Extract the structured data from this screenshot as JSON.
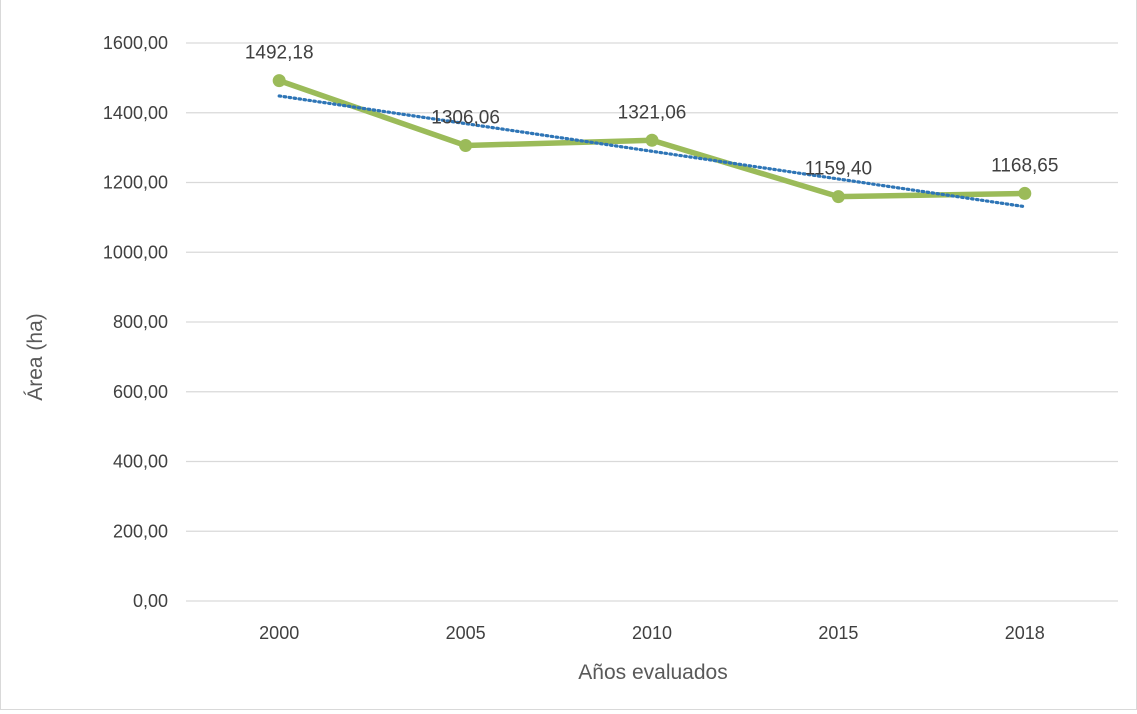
{
  "chart_data": {
    "type": "line",
    "categories": [
      "2000",
      "2005",
      "2010",
      "2015",
      "2018"
    ],
    "series": [
      {
        "values": [
          1492.18,
          1306.06,
          1321.06,
          1159.4,
          1168.65
        ],
        "data_labels": [
          "1492,18",
          "1306,06",
          "1321,06",
          "1159,40",
          "1168,65"
        ],
        "color": "#9bbb59"
      }
    ],
    "trendline": {
      "type": "linear",
      "style": "dotted",
      "color": "#2e75b6"
    },
    "xlabel": "Años evaluados",
    "ylabel": "Área (ha)",
    "ylim": [
      0,
      1600
    ],
    "yticks": [
      0,
      200,
      400,
      600,
      800,
      1000,
      1200,
      1400,
      1600
    ],
    "ytick_labels": [
      "0,00",
      "200,00",
      "400,00",
      "600,00",
      "800,00",
      "1000,00",
      "1200,00",
      "1400,00",
      "1600,00"
    ],
    "grid": true,
    "legend": "none",
    "gridline_color": "#d9d9d9"
  }
}
